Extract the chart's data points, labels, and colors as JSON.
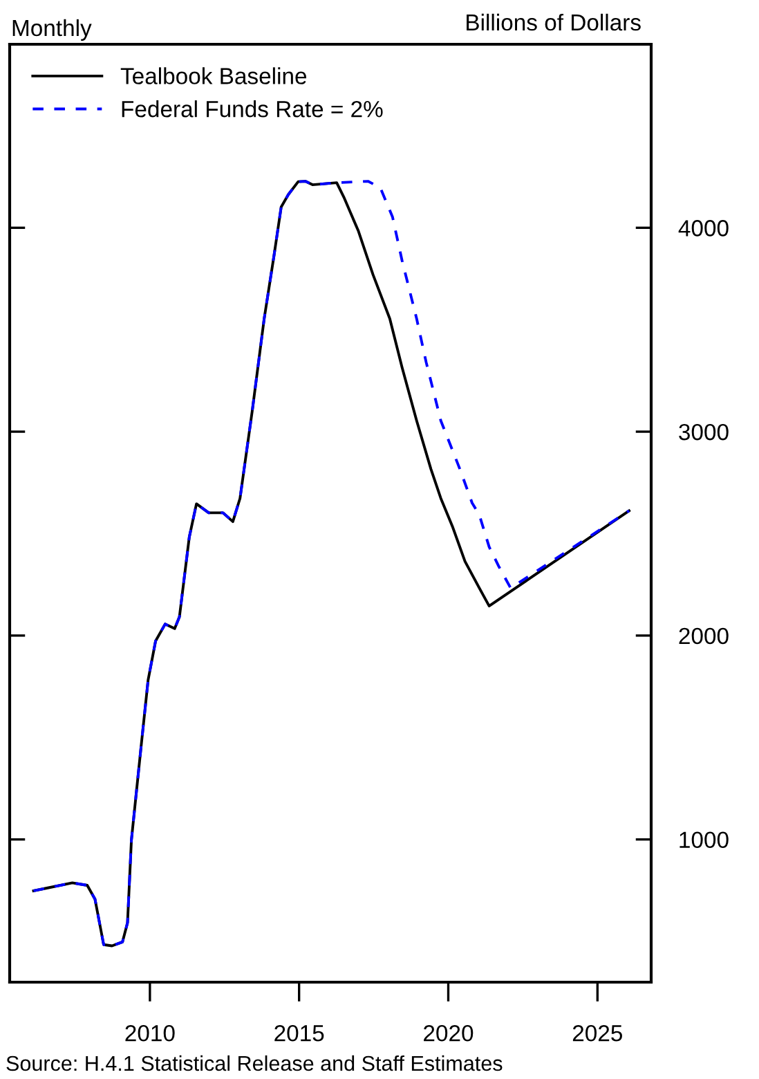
{
  "chart_data": {
    "type": "line",
    "series": [
      {
        "name": "Tealbook Baseline",
        "color": "#000000",
        "line_style": "solid",
        "x": [
          2006.1,
          2006.6,
          2007.4,
          2007.9,
          2008.16,
          2008.45,
          2008.73,
          2009.08,
          2009.25,
          2009.38,
          2009.7,
          2009.94,
          2010.19,
          2010.51,
          2010.83,
          2010.99,
          2011.32,
          2011.56,
          2011.97,
          2012.45,
          2012.78,
          2013.02,
          2013.43,
          2013.83,
          2014.16,
          2014.4,
          2014.64,
          2014.97,
          2015.21,
          2015.45,
          2015.86,
          2016.26,
          2016.5,
          2016.99,
          2017.48,
          2018.04,
          2018.45,
          2018.94,
          2019.42,
          2019.75,
          2020.15,
          2020.56,
          2021.04,
          2021.37,
          2026.06
        ],
        "values": [
          748,
          763,
          787,
          775,
          707,
          484,
          478,
          497,
          592,
          997,
          1449,
          1782,
          1973,
          2056,
          2034,
          2092,
          2483,
          2646,
          2602,
          2602,
          2559,
          2673,
          3102,
          3554,
          3864,
          4102,
          4163,
          4226,
          4228,
          4211,
          4216,
          4221,
          4150,
          3983,
          3769,
          3554,
          3316,
          3054,
          2816,
          2673,
          2531,
          2364,
          2233,
          2145,
          2612
        ]
      },
      {
        "name": "Federal Funds Rate = 2%",
        "color": "#0000ff",
        "line_style": "dashed",
        "x": [
          2006.1,
          2006.6,
          2007.4,
          2007.9,
          2008.16,
          2008.45,
          2008.73,
          2009.08,
          2009.25,
          2009.38,
          2009.7,
          2009.94,
          2010.19,
          2010.51,
          2010.83,
          2010.99,
          2011.32,
          2011.56,
          2011.97,
          2012.45,
          2012.78,
          2013.02,
          2013.43,
          2013.83,
          2014.16,
          2014.4,
          2014.64,
          2014.97,
          2015.21,
          2015.45,
          2015.86,
          2016.26,
          2017.31,
          2017.72,
          2018.13,
          2018.45,
          2018.94,
          2019.26,
          2019.75,
          2020.07,
          2020.39,
          2020.8,
          2021.04,
          2021.37,
          2021.69,
          2022.09,
          2026.06
        ],
        "values": [
          748,
          763,
          787,
          775,
          707,
          484,
          478,
          497,
          592,
          997,
          1449,
          1782,
          1973,
          2056,
          2034,
          2092,
          2483,
          2646,
          2602,
          2602,
          2559,
          2673,
          3102,
          3554,
          3864,
          4102,
          4163,
          4226,
          4228,
          4211,
          4216,
          4221,
          4228,
          4197,
          4054,
          3840,
          3554,
          3340,
          3054,
          2935,
          2816,
          2650,
          2592,
          2435,
          2340,
          2233,
          2612
        ]
      }
    ],
    "xlim": [
      2005.3,
      2026.8
    ],
    "xticks": [
      2010,
      2015,
      2020,
      2025
    ],
    "ylim": [
      300,
      4900
    ],
    "yticks": [
      1000,
      2000,
      3000,
      4000
    ],
    "grid": false,
    "legend": "top left",
    "marker": "none",
    "annotations": [
      "Monthly",
      "Billions of Dollars",
      "Source: H.4.1 Statistical Release and Staff Estimates"
    ]
  }
}
